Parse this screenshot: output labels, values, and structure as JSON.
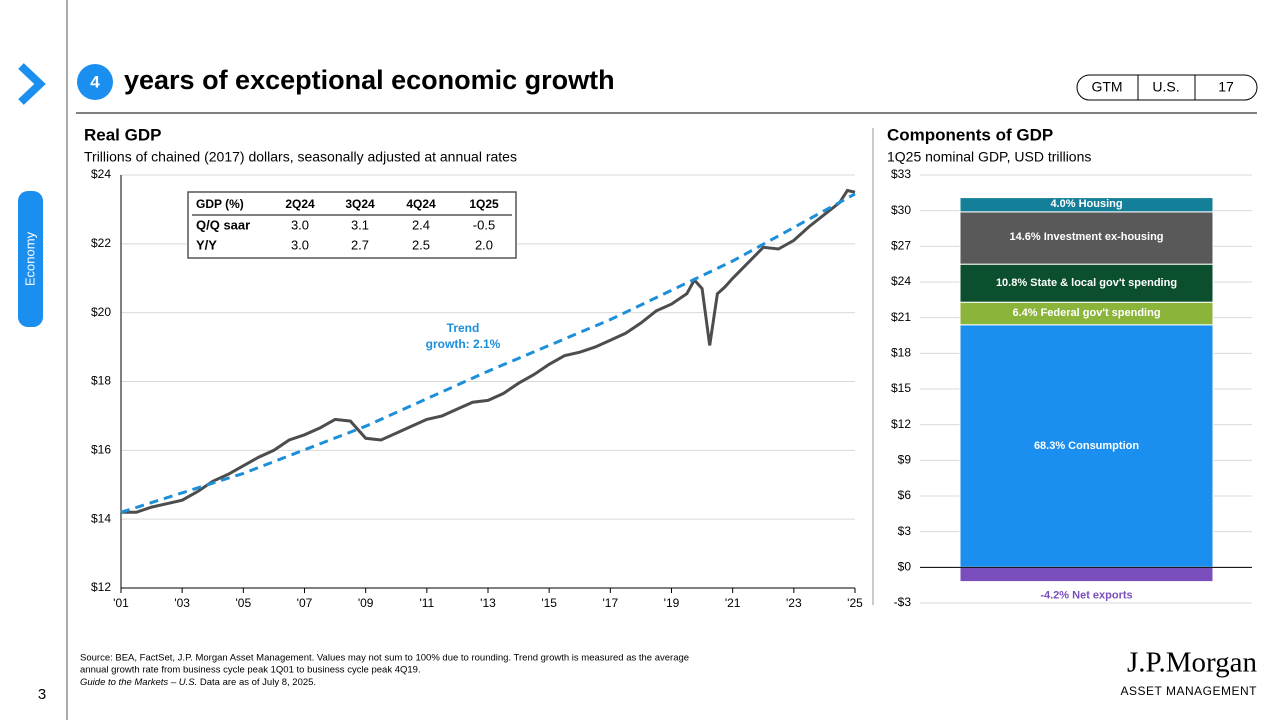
{
  "header": {
    "number": "4",
    "title": "years of exceptional economic growth",
    "tags": [
      "GTM",
      "U.S.",
      "17"
    ]
  },
  "side_tab": "Economy",
  "page_number": "3",
  "logo": {
    "name": "J.P.Morgan",
    "tagline": "ASSET MANAGEMENT"
  },
  "footnote": {
    "lines": [
      "Source: BEA, FactSet, J.P. Morgan Asset Management. Values may not sum to 100% due to rounding. Trend growth is measured as the average",
      "annual growth rate from business cycle peak 1Q01 to business cycle peak 4Q19."
    ],
    "italic": "Guide to the Markets – U.S.",
    "rest": " Data are as of July 8, 2025."
  },
  "chart_data": [
    {
      "type": "line",
      "title": "Real GDP",
      "subtitle": "Trillions of chained (2017) dollars, seasonally adjusted at annual rates",
      "xlim": [
        2001,
        2025
      ],
      "xticks": [
        {
          "value": 2001,
          "label": "'01"
        },
        {
          "value": 2003,
          "label": "'03"
        },
        {
          "value": 2005,
          "label": "'05"
        },
        {
          "value": 2007,
          "label": "'07"
        },
        {
          "value": 2009,
          "label": "'09"
        },
        {
          "value": 2011,
          "label": "'11"
        },
        {
          "value": 2013,
          "label": "'13"
        },
        {
          "value": 2015,
          "label": "'15"
        },
        {
          "value": 2017,
          "label": "'17"
        },
        {
          "value": 2019,
          "label": "'19"
        },
        {
          "value": 2021,
          "label": "'21"
        },
        {
          "value": 2023,
          "label": "'23"
        },
        {
          "value": 2025,
          "label": "'25"
        }
      ],
      "ylim": [
        12,
        24
      ],
      "yticks": [
        {
          "value": 12,
          "label": "$12"
        },
        {
          "value": 14,
          "label": "$14"
        },
        {
          "value": 16,
          "label": "$16"
        },
        {
          "value": 18,
          "label": "$18"
        },
        {
          "value": 20,
          "label": "$20"
        },
        {
          "value": 22,
          "label": "$22"
        },
        {
          "value": 24,
          "label": "$24"
        }
      ],
      "grid": true,
      "series": [
        {
          "color": "#4d4d4d",
          "dashed": false,
          "x": [
            2001,
            2001.5,
            2002,
            2002.5,
            2003,
            2003.5,
            2004,
            2004.5,
            2005,
            2005.5,
            2006,
            2006.5,
            2007,
            2007.5,
            2008,
            2008.5,
            2009,
            2009.5,
            2010,
            2010.5,
            2011,
            2011.5,
            2012,
            2012.5,
            2013,
            2013.5,
            2014,
            2014.5,
            2015,
            2015.5,
            2016,
            2016.5,
            2017,
            2017.5,
            2018,
            2018.5,
            2019,
            2019.5,
            2019.75,
            2020,
            2020.25,
            2020.5,
            2020.75,
            2021,
            2021.5,
            2022,
            2022.5,
            2023,
            2023.5,
            2024,
            2024.5,
            2024.75,
            2025
          ],
          "values": [
            14.2,
            14.2,
            14.35,
            14.45,
            14.55,
            14.8,
            15.1,
            15.3,
            15.55,
            15.8,
            16.0,
            16.3,
            16.45,
            16.65,
            16.9,
            16.85,
            16.35,
            16.3,
            16.5,
            16.7,
            16.9,
            17.0,
            17.2,
            17.4,
            17.45,
            17.65,
            17.95,
            18.2,
            18.5,
            18.75,
            18.85,
            19.0,
            19.2,
            19.4,
            19.7,
            20.05,
            20.25,
            20.55,
            20.95,
            20.7,
            19.05,
            20.55,
            20.75,
            21.0,
            21.45,
            21.9,
            21.85,
            22.1,
            22.5,
            22.85,
            23.2,
            23.55,
            23.5
          ]
        },
        {
          "color": "#1c8fd9",
          "dashed": true,
          "x": [
            2001,
            2005,
            2009,
            2013,
            2017,
            2021,
            2025
          ],
          "values": [
            14.2,
            15.33,
            16.7,
            18.3,
            19.8,
            21.5,
            23.45
          ]
        }
      ],
      "annotation": [
        "Trend",
        "growth: 2.1%"
      ],
      "table": {
        "header": [
          "GDP (%)",
          "2Q24",
          "3Q24",
          "4Q24",
          "1Q25"
        ],
        "rows": [
          [
            "Q/Q saar",
            "3.0",
            "3.1",
            "2.4",
            "-0.5"
          ],
          [
            "Y/Y",
            "3.0",
            "2.7",
            "2.5",
            "2.0"
          ]
        ]
      }
    },
    {
      "type": "stacked_bar",
      "title": "Components of GDP",
      "subtitle": "1Q25 nominal GDP, USD trillions",
      "ylim": [
        -3,
        33
      ],
      "yticks": [
        {
          "value": -3,
          "label": "-$3"
        },
        {
          "value": 0,
          "label": "$0"
        },
        {
          "value": 3,
          "label": "$3"
        },
        {
          "value": 6,
          "label": "$6"
        },
        {
          "value": 9,
          "label": "$9"
        },
        {
          "value": 12,
          "label": "$12"
        },
        {
          "value": 15,
          "label": "$15"
        },
        {
          "value": 18,
          "label": "$18"
        },
        {
          "value": 21,
          "label": "$21"
        },
        {
          "value": 24,
          "label": "$24"
        },
        {
          "value": 27,
          "label": "$27"
        },
        {
          "value": 30,
          "label": "$30"
        },
        {
          "value": 33,
          "label": "$33"
        }
      ],
      "grid": true,
      "series": [
        {
          "name": "68.3% Consumption",
          "color": "#1a8ff0",
          "values": [
            20.4
          ]
        },
        {
          "name": "6.4% Federal gov't spending",
          "color": "#8bb43a",
          "values": [
            1.9
          ]
        },
        {
          "name": "10.8% State & local gov't spending",
          "color": "#0b4f2e",
          "values": [
            3.2
          ]
        },
        {
          "name": "14.6% Investment ex-housing",
          "color": "#595959",
          "values": [
            4.4
          ]
        },
        {
          "name": "4.0% Housing",
          "color": "#147f99",
          "values": [
            1.2
          ]
        },
        {
          "name": "-4.2% Net exports",
          "color": "#7a4fbd",
          "values": [
            -1.2
          ]
        }
      ]
    }
  ]
}
